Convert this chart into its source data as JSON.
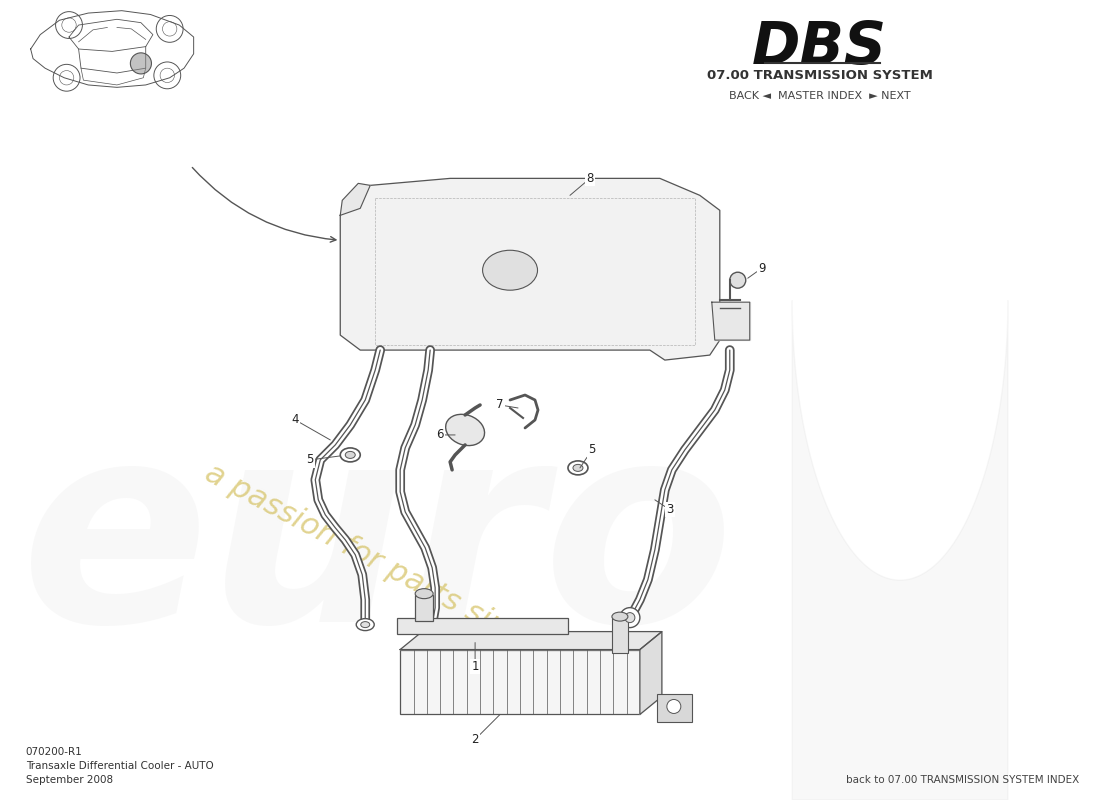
{
  "title_dbs": "DBS",
  "title_system": "07.00 TRANSMISSION SYSTEM",
  "nav_text": "BACK ◄  MASTER INDEX  ► NEXT",
  "part_number": "070200-R1",
  "part_name": "Transaxle Differential Cooler - AUTO",
  "date": "September 2008",
  "back_link": "back to 07.00 TRANSMISSION SYSTEM INDEX",
  "bg_color": "#ffffff",
  "line_color": "#555555",
  "label_color": "#222222",
  "watermark_euro_color": "#cccccc",
  "watermark_text_color": "#d4c060",
  "fig_width": 11.0,
  "fig_height": 8.0,
  "dpi": 100
}
